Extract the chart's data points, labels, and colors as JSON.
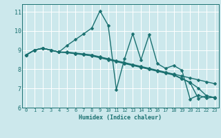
{
  "xlabel": "Humidex (Indice chaleur)",
  "xlim": [
    -0.5,
    23.5
  ],
  "ylim": [
    6,
    11.4
  ],
  "yticks": [
    6,
    7,
    8,
    9,
    10,
    11
  ],
  "xticks": [
    0,
    1,
    2,
    3,
    4,
    5,
    6,
    7,
    8,
    9,
    10,
    11,
    12,
    13,
    14,
    15,
    16,
    17,
    18,
    19,
    20,
    21,
    22,
    23
  ],
  "background_color": "#cce8ec",
  "line_color": "#1a7070",
  "grid_color": "#ffffff",
  "lines": [
    {
      "x": [
        0,
        1,
        2,
        3,
        4,
        5,
        6,
        7,
        8,
        9,
        10,
        11,
        12,
        13,
        14,
        15,
        16,
        17,
        18,
        19,
        20,
        21,
        22,
        23
      ],
      "y": [
        8.75,
        9.0,
        9.1,
        9.0,
        8.9,
        9.25,
        9.55,
        9.85,
        10.15,
        11.05,
        10.3,
        6.95,
        8.55,
        9.85,
        8.5,
        9.8,
        8.3,
        8.05,
        8.2,
        7.95,
        6.45,
        6.65,
        6.5,
        6.55
      ]
    },
    {
      "x": [
        0,
        1,
        2,
        3,
        4,
        5,
        6,
        7,
        8,
        9,
        10,
        11,
        12,
        13,
        14,
        15,
        16,
        17,
        18,
        19,
        20,
        21,
        22,
        23
      ],
      "y": [
        8.75,
        9.0,
        9.1,
        9.0,
        8.9,
        8.9,
        8.85,
        8.8,
        8.75,
        8.65,
        8.55,
        8.45,
        8.35,
        8.25,
        8.15,
        8.05,
        7.95,
        7.85,
        7.75,
        7.65,
        7.55,
        7.45,
        7.35,
        7.25
      ]
    },
    {
      "x": [
        0,
        1,
        2,
        3,
        4,
        5,
        6,
        7,
        8,
        9,
        10,
        11,
        12,
        13,
        14,
        15,
        16,
        17,
        18,
        19,
        20,
        21,
        22,
        23
      ],
      "y": [
        8.75,
        9.0,
        9.1,
        9.0,
        8.9,
        8.88,
        8.82,
        8.78,
        8.72,
        8.62,
        8.52,
        8.42,
        8.32,
        8.22,
        8.12,
        8.02,
        7.92,
        7.82,
        7.72,
        7.52,
        7.32,
        7.02,
        6.62,
        6.52
      ]
    },
    {
      "x": [
        0,
        1,
        2,
        3,
        4,
        5,
        6,
        7,
        8,
        9,
        10,
        11,
        12,
        13,
        14,
        15,
        16,
        17,
        18,
        19,
        20,
        21,
        22,
        23
      ],
      "y": [
        8.75,
        9.0,
        9.1,
        9.0,
        8.9,
        8.87,
        8.81,
        8.76,
        8.7,
        8.6,
        8.5,
        8.4,
        8.3,
        8.2,
        8.1,
        8.0,
        7.9,
        7.8,
        7.7,
        7.5,
        7.3,
        6.48,
        6.62,
        6.52
      ]
    }
  ],
  "marker": "D",
  "marker_size": 2.5,
  "linewidth": 1.0
}
